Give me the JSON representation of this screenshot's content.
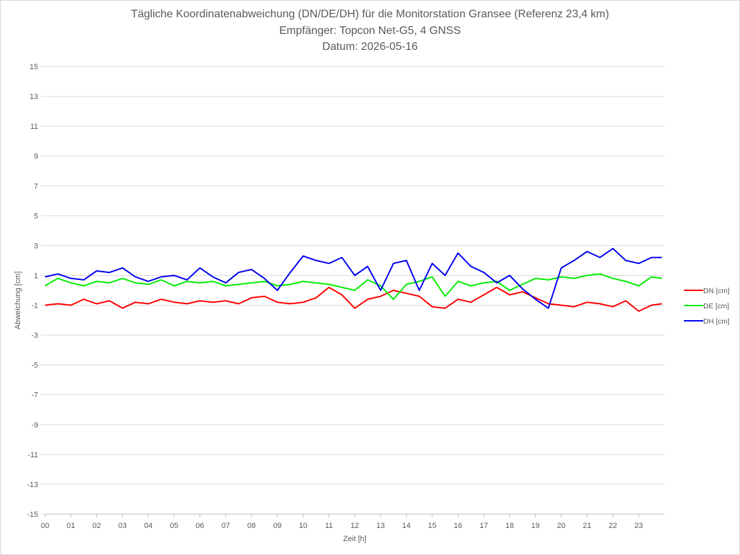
{
  "chart_data": {
    "type": "line",
    "title": "Tägliche Koordinatenabweichung (DN/DE/DH) für die Monitorstation Gransee (Referenz 23,4 km)",
    "subtitle": "Empfänger: Topcon Net-G5, 4 GNSS",
    "date_line": "Datum: 2026-05-16",
    "xlabel": "Zeit [h]",
    "ylabel": "Abweichung [cm]",
    "xlim": [
      0,
      24
    ],
    "ylim": [
      -15,
      15
    ],
    "x_ticks": [
      "00",
      "01",
      "02",
      "03",
      "04",
      "05",
      "06",
      "07",
      "08",
      "09",
      "10",
      "11",
      "12",
      "13",
      "14",
      "15",
      "16",
      "17",
      "18",
      "19",
      "20",
      "21",
      "22",
      "23"
    ],
    "y_ticks": [
      "15",
      "13",
      "11",
      "9",
      "7",
      "5",
      "3",
      "1",
      "-1",
      "-3",
      "-5",
      "-7",
      "-9",
      "-11",
      "-13",
      "-15"
    ],
    "grid": "horizontal",
    "legend_position": "right",
    "x": [
      0.0,
      0.5,
      1.0,
      1.5,
      2.0,
      2.5,
      3.0,
      3.5,
      4.0,
      4.5,
      5.0,
      5.5,
      6.0,
      6.5,
      7.0,
      7.5,
      8.0,
      8.5,
      9.0,
      9.5,
      10.0,
      10.5,
      11.0,
      11.5,
      12.0,
      12.5,
      13.0,
      13.5,
      14.0,
      14.5,
      15.0,
      15.5,
      16.0,
      16.5,
      17.0,
      17.5,
      18.0,
      18.5,
      19.0,
      19.5,
      20.0,
      20.5,
      21.0,
      21.5,
      22.0,
      22.5,
      23.0,
      23.5,
      23.9
    ],
    "series": [
      {
        "name": "DN [cm]",
        "color": "#ff0000",
        "values": [
          -1.0,
          -0.9,
          -1.0,
          -0.6,
          -0.9,
          -0.7,
          -1.2,
          -0.8,
          -0.9,
          -0.6,
          -0.8,
          -0.9,
          -0.7,
          -0.8,
          -0.7,
          -0.9,
          -0.5,
          -0.4,
          -0.8,
          -0.9,
          -0.8,
          -0.5,
          0.2,
          -0.3,
          -1.2,
          -0.6,
          -0.4,
          0.0,
          -0.2,
          -0.4,
          -1.1,
          -1.2,
          -0.6,
          -0.8,
          -0.3,
          0.2,
          -0.3,
          -0.1,
          -0.5,
          -0.9,
          -1.0,
          -1.1,
          -0.8,
          -0.9,
          -1.1,
          -0.7,
          -1.4,
          -1.0,
          -0.9
        ]
      },
      {
        "name": "DE [cm]",
        "color": "#00ee00",
        "values": [
          0.3,
          0.8,
          0.5,
          0.3,
          0.6,
          0.5,
          0.8,
          0.5,
          0.4,
          0.7,
          0.3,
          0.6,
          0.5,
          0.6,
          0.3,
          0.4,
          0.5,
          0.6,
          0.3,
          0.4,
          0.6,
          0.5,
          0.4,
          0.2,
          0.0,
          0.7,
          0.3,
          -0.6,
          0.4,
          0.6,
          0.9,
          -0.4,
          0.6,
          0.3,
          0.5,
          0.6,
          0.0,
          0.4,
          0.8,
          0.7,
          0.9,
          0.8,
          1.0,
          1.1,
          0.8,
          0.6,
          0.3,
          0.9,
          0.8
        ]
      },
      {
        "name": "DH [cm]",
        "color": "#0000ee",
        "values": [
          0.9,
          1.1,
          0.8,
          0.7,
          1.3,
          1.2,
          1.5,
          0.9,
          0.6,
          0.9,
          1.0,
          0.7,
          1.5,
          0.9,
          0.5,
          1.2,
          1.4,
          0.8,
          0.0,
          1.2,
          2.3,
          2.0,
          1.8,
          2.2,
          1.0,
          1.6,
          0.0,
          1.8,
          2.0,
          0.0,
          1.8,
          1.0,
          2.5,
          1.6,
          1.2,
          0.5,
          1.0,
          0.1,
          -0.6,
          -1.2,
          1.5,
          2.0,
          2.6,
          2.2,
          2.8,
          2.0,
          1.8,
          2.2,
          2.2
        ]
      }
    ]
  }
}
